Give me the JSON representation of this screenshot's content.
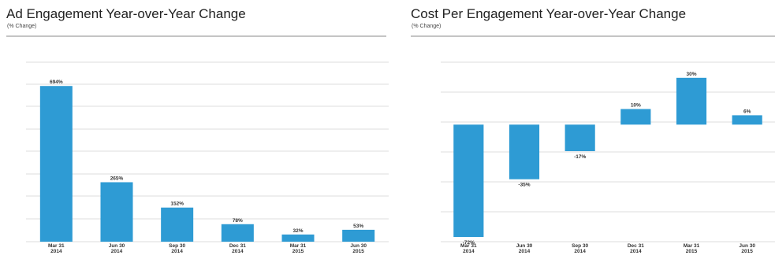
{
  "chart_data": [
    {
      "type": "bar",
      "title": "Ad Engagement Year-over-Year Change",
      "subtitle": "(% Change)",
      "categories": [
        [
          "Mar 31",
          "2014"
        ],
        [
          "Jun 30",
          "2014"
        ],
        [
          "Sep 30",
          "2014"
        ],
        [
          "Dec 31",
          "2014"
        ],
        [
          "Mar 31",
          "2015"
        ],
        [
          "Jun 30",
          "2015"
        ]
      ],
      "values": [
        694,
        265,
        152,
        78,
        32,
        53
      ],
      "data_labels": [
        "694%",
        "265%",
        "152%",
        "78%",
        "32%",
        "53%"
      ],
      "xlabel": "",
      "ylabel": "",
      "ylim": [
        0,
        800
      ],
      "grid": true,
      "bar_color": "#2e9bd4"
    },
    {
      "type": "bar",
      "title": "Cost Per Engagement Year-over-Year Change",
      "subtitle": "(% Change)",
      "categories": [
        [
          "Mar 31",
          "2014"
        ],
        [
          "Jun 30",
          "2014"
        ],
        [
          "Sep 30",
          "2014"
        ],
        [
          "Dec 31",
          "2014"
        ],
        [
          "Mar 31",
          "2015"
        ],
        [
          "Jun 30",
          "2015"
        ]
      ],
      "values": [
        -72,
        -35,
        -17,
        10,
        30,
        6
      ],
      "data_labels": [
        "-72%",
        "-35%",
        "-17%",
        "10%",
        "30%",
        "6%"
      ],
      "xlabel": "",
      "ylabel": "",
      "ylim": [
        -75,
        40
      ],
      "grid": true,
      "bar_color": "#2e9bd4"
    }
  ]
}
